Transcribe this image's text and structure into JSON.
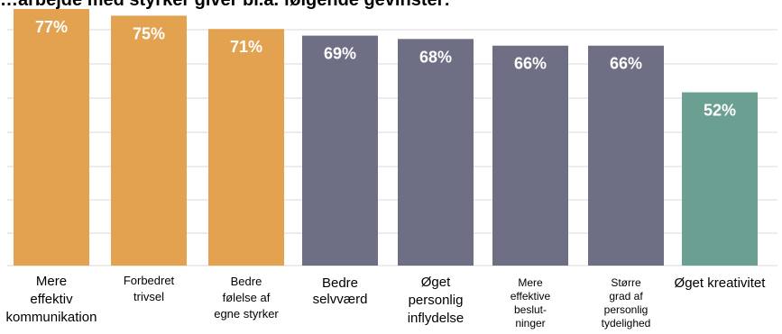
{
  "title_partial": "…arbejde med styrker giver bl.a. følgende gevinster:",
  "colors": {
    "orange": "#E3A24F",
    "slate": "#6E6E85",
    "teal": "#6A9F92",
    "gridline": "#D9D9D9",
    "label_white": "#FFFFFF"
  },
  "chart_data": {
    "type": "bar",
    "title": "",
    "xlabel": "",
    "ylabel": "",
    "ylim": [
      0,
      77
    ],
    "grid": true,
    "legend": "none",
    "categories": [
      "Mere effektiv kommunikation",
      "Forbedret trivsel",
      "Bedre følelse af egne styrker",
      "Bedre selvværd",
      "Øget personlig inflydelse",
      "Mere effektive beslut-ninger",
      "Større grad af personlig tydelighed",
      "Øget kreativitet"
    ],
    "category_lines": [
      [
        "Mere",
        "effektiv",
        "kommunikation"
      ],
      [
        "Forbedret",
        "trivsel"
      ],
      [
        "Bedre",
        "følelse af",
        "egne styrker"
      ],
      [
        "Bedre",
        "selvværd"
      ],
      [
        "Øget",
        "personlig",
        "inflydelse"
      ],
      [
        "Mere",
        "effektive",
        "beslut-",
        "ninger"
      ],
      [
        "Større",
        "grad af",
        "personlig",
        "tydelighed"
      ],
      [
        "Øget kreativitet"
      ]
    ],
    "values": [
      77,
      75,
      71,
      69,
      68,
      66,
      66,
      52
    ],
    "value_labels": [
      "77%",
      "75%",
      "71%",
      "69%",
      "68%",
      "66%",
      "66%",
      "52%"
    ],
    "bar_colors": [
      "#E3A24F",
      "#E3A24F",
      "#E3A24F",
      "#6E6E85",
      "#6E6E85",
      "#6E6E85",
      "#6E6E85",
      "#6A9F92"
    ]
  }
}
